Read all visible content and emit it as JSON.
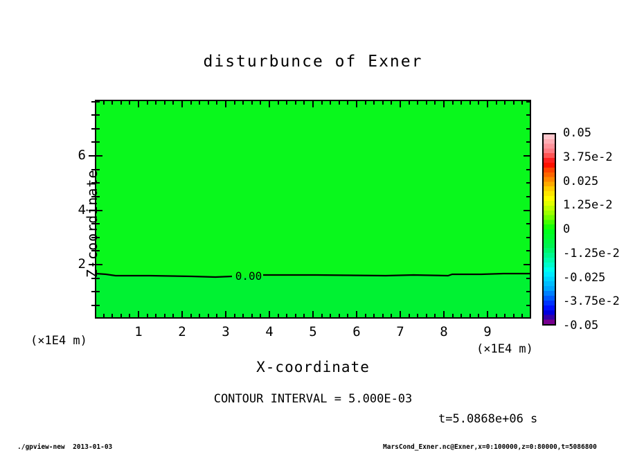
{
  "title": "disturbunce of Exner",
  "plot": {
    "x_axis": {
      "label": "X-coordinate",
      "unit": "(×1E4 m)",
      "ticks": [
        "1",
        "2",
        "3",
        "4",
        "5",
        "6",
        "7",
        "8",
        "9"
      ]
    },
    "y_axis": {
      "label": "Z-coordinate",
      "unit": "(×1E4 m)",
      "ticks": [
        "2",
        "4",
        "6"
      ]
    },
    "contour_label": "0.00",
    "fill_above_contour": "#09f81c",
    "fill_below_contour": "#00f232"
  },
  "colorbar": {
    "labels": [
      "0.05",
      "3.75e-2",
      "0.025",
      "1.25e-2",
      "0",
      "-1.25e-2",
      "-0.025",
      "-3.75e-2",
      "-0.05"
    ],
    "boxes": [
      [
        "#ffc6cc",
        "#ffadb4",
        "#ff939b",
        "#ff7a82"
      ],
      [
        "#ff5555",
        "#ff2222",
        "#ff1100",
        "#ff4400"
      ],
      [
        "#ff6600",
        "#ff8800",
        "#ffaa00",
        "#ffcc00"
      ],
      [
        "#ffe400",
        "#fffb00",
        "#e2ff00",
        "#bfff00"
      ],
      [
        "#9dff00",
        "#72ff00",
        "#44ff00",
        "#16ff08"
      ],
      [
        "#00ff1d",
        "#00fb2e",
        "#00f73f",
        "#00f350"
      ],
      [
        "#00f56d",
        "#00f88c",
        "#00fbac",
        "#00fdcb"
      ],
      [
        "#00ffee",
        "#00eaff",
        "#00d4ff",
        "#00bdff"
      ],
      [
        "#00a6ff",
        "#0080ff",
        "#005aff",
        "#0034ff"
      ],
      [
        "#0010ff",
        "#0000dd",
        "#3300aa",
        "#77008f"
      ]
    ]
  },
  "annotations": {
    "contour_interval": "CONTOUR INTERVAL = 5.000E-03",
    "time": "t=5.0868e+06 s"
  },
  "footer": {
    "left": "./gpview-new  2013-01-03",
    "right": "MarsCond_Exner.nc@Exner,x=0:100000,z=0:80000,t=5086800"
  },
  "chart_data": {
    "type": "heatmap",
    "subtype": "filled-contour",
    "title": "disturbunce of Exner",
    "xlabel": "X-coordinate",
    "ylabel": "Z-coordinate",
    "x_unit": "×1E4 m",
    "y_unit": "×1E4 m",
    "xlim": [
      0,
      10
    ],
    "ylim": [
      0,
      8.1
    ],
    "x_ticks": [
      1,
      2,
      3,
      4,
      5,
      6,
      7,
      8,
      9
    ],
    "x_minor_tick_step": 0.2,
    "y_ticks": [
      2,
      4,
      6
    ],
    "y_minor_tick_step": 0.5,
    "grid": false,
    "contour_interval": 0.005,
    "contours": [
      {
        "level": 0.0,
        "label": "0.00",
        "at_z": 1.6,
        "shape": "nearly flat horizontal line across full x range"
      }
    ],
    "field": {
      "above_contour_value_range": [
        0,
        0.005
      ],
      "below_contour_value_range": [
        -0.005,
        0
      ],
      "description": "Exner disturbance is approximately 0 everywhere: slightly positive above z≈1.6e4 m, slightly negative below"
    },
    "colorbar": {
      "position": "right",
      "min": -0.05,
      "max": 0.05,
      "tick_values": [
        0.05,
        0.0375,
        0.025,
        0.0125,
        0,
        -0.0125,
        -0.025,
        -0.0375,
        -0.05
      ],
      "tick_labels": [
        "0.05",
        "3.75e-2",
        "0.025",
        "1.25e-2",
        "0",
        "-1.25e-2",
        "-0.025",
        "-3.75e-2",
        "-0.05"
      ],
      "palette": "rainbow: purple→blue→cyan→green→yellow→orange→red→pink"
    },
    "time_annotation": "t=5.0868e+06 s"
  }
}
